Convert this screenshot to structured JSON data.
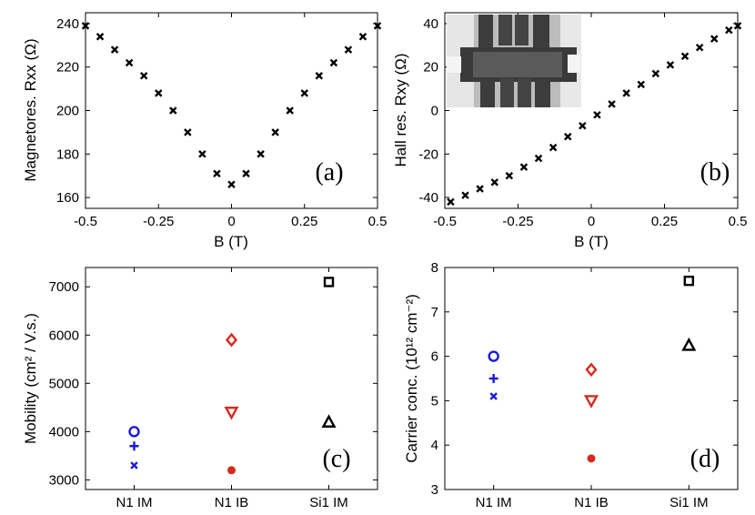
{
  "chart_data": [
    {
      "id": "a",
      "type": "scatter",
      "marker": "x",
      "panel_label": "(a)",
      "xlabel": "B (T)",
      "ylabel": "Magnetores. Rxx (Ω)",
      "xlim": [
        -0.5,
        0.5
      ],
      "ylim": [
        155,
        245
      ],
      "xticks": [
        -0.5,
        -0.25,
        0,
        0.25,
        0.5
      ],
      "xtick_labels": [
        "-0.5",
        "-0.25",
        "0",
        "0.25",
        "0.5"
      ],
      "yticks": [
        160,
        180,
        200,
        220,
        240
      ],
      "ytick_labels": [
        "160",
        "180",
        "200",
        "220",
        "240"
      ],
      "x": [
        -0.5,
        -0.45,
        -0.4,
        -0.35,
        -0.3,
        -0.25,
        -0.2,
        -0.15,
        -0.1,
        -0.05,
        0,
        0.05,
        0.1,
        0.15,
        0.2,
        0.25,
        0.3,
        0.35,
        0.4,
        0.45,
        0.5
      ],
      "y": [
        239,
        234,
        228,
        222,
        216,
        208,
        200,
        190,
        180,
        171,
        166,
        171,
        180,
        190,
        200,
        208,
        216,
        222,
        228,
        234,
        239
      ]
    },
    {
      "id": "b",
      "type": "scatter",
      "marker": "x",
      "panel_label": "(b)",
      "xlabel": "B (T)",
      "ylabel": "Hall res. Rxy (Ω)",
      "xlim": [
        -0.5,
        0.5
      ],
      "ylim": [
        -45,
        45
      ],
      "xticks": [
        -0.5,
        -0.25,
        0,
        0.25,
        0.5
      ],
      "xtick_labels": [
        "-0.5",
        "-0.25",
        "0",
        "0.25",
        "0.5"
      ],
      "yticks": [
        -40,
        -20,
        0,
        20,
        40
      ],
      "ytick_labels": [
        "-40",
        "-20",
        "0",
        "20",
        "40"
      ],
      "x": [
        -0.48,
        -0.43,
        -0.38,
        -0.33,
        -0.28,
        -0.23,
        -0.18,
        -0.13,
        -0.08,
        -0.03,
        0.02,
        0.07,
        0.12,
        0.17,
        0.22,
        0.27,
        0.32,
        0.37,
        0.42,
        0.47,
        0.5
      ],
      "y": [
        -42,
        -39,
        -36,
        -33,
        -30,
        -26,
        -22,
        -17,
        -12,
        -7,
        -2,
        3,
        8,
        12,
        17,
        21,
        25,
        29,
        33,
        37,
        39
      ],
      "inset": "device micrograph"
    },
    {
      "id": "c",
      "type": "scatter",
      "panel_label": "(c)",
      "xlabel": "",
      "ylabel": "Mobility (cm² / V.s.)",
      "categories": [
        "N1 IM",
        "N1 IB",
        "Si1 IM"
      ],
      "ylim": [
        2800,
        7400
      ],
      "yticks": [
        3000,
        4000,
        5000,
        6000,
        7000
      ],
      "ytick_labels": [
        "3000",
        "4000",
        "5000",
        "6000",
        "7000"
      ],
      "points": [
        {
          "cat": 0,
          "value": 4000,
          "marker": "circle",
          "color": "#1a1adb"
        },
        {
          "cat": 0,
          "value": 3700,
          "marker": "plus",
          "color": "#1a1adb"
        },
        {
          "cat": 0,
          "value": 3300,
          "marker": "x",
          "color": "#1a1adb"
        },
        {
          "cat": 1,
          "value": 5900,
          "marker": "diamond",
          "color": "#d62a1e"
        },
        {
          "cat": 1,
          "value": 4400,
          "marker": "triangle-down",
          "color": "#d62a1e"
        },
        {
          "cat": 1,
          "value": 3200,
          "marker": "dot",
          "color": "#d62a1e"
        },
        {
          "cat": 2,
          "value": 7100,
          "marker": "square",
          "color": "#000000"
        },
        {
          "cat": 2,
          "value": 4200,
          "marker": "triangle-up",
          "color": "#000000"
        }
      ]
    },
    {
      "id": "d",
      "type": "scatter",
      "panel_label": "(d)",
      "xlabel": "",
      "ylabel": "Carrier conc. (10¹² cm⁻²)",
      "categories": [
        "N1 IM",
        "N1 IB",
        "Si1 IM"
      ],
      "ylim": [
        3,
        8
      ],
      "yticks": [
        3,
        4,
        5,
        6,
        7,
        8
      ],
      "ytick_labels": [
        "3",
        "4",
        "5",
        "6",
        "7",
        "8"
      ],
      "points": [
        {
          "cat": 0,
          "value": 6.0,
          "marker": "circle",
          "color": "#1a1adb"
        },
        {
          "cat": 0,
          "value": 5.5,
          "marker": "plus",
          "color": "#1a1adb"
        },
        {
          "cat": 0,
          "value": 5.1,
          "marker": "x",
          "color": "#1a1adb"
        },
        {
          "cat": 1,
          "value": 5.7,
          "marker": "diamond",
          "color": "#d62a1e"
        },
        {
          "cat": 1,
          "value": 5.0,
          "marker": "triangle-down",
          "color": "#d62a1e"
        },
        {
          "cat": 1,
          "value": 3.7,
          "marker": "dot",
          "color": "#d62a1e"
        },
        {
          "cat": 2,
          "value": 7.7,
          "marker": "square",
          "color": "#000000"
        },
        {
          "cat": 2,
          "value": 6.25,
          "marker": "triangle-up",
          "color": "#000000"
        }
      ]
    }
  ]
}
